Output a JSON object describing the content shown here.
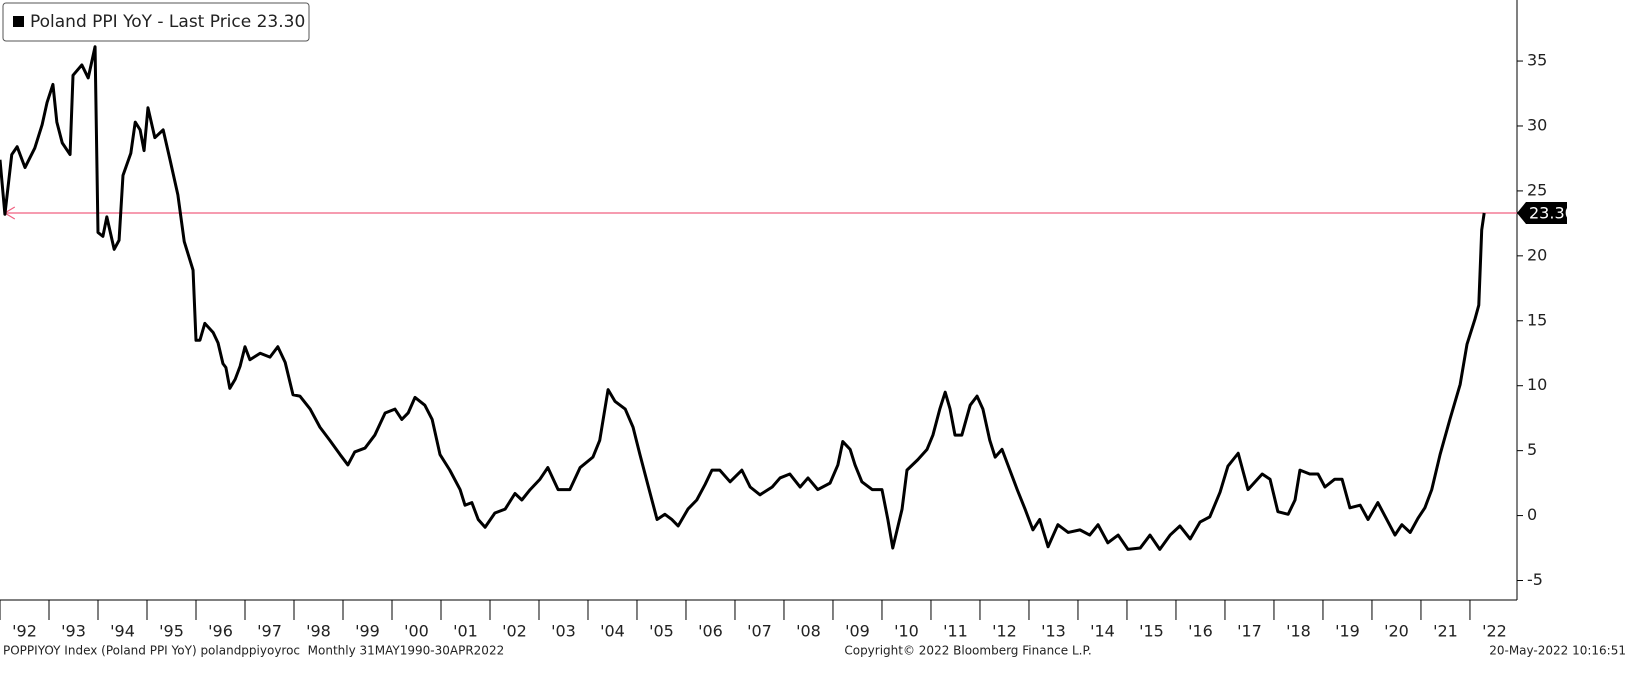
{
  "chart_data": {
    "type": "line",
    "series": [
      {
        "name": "Poland PPI YoY - Last Price 23.30",
        "color": "#000000",
        "x": [
          1992.0,
          1992.1,
          1992.24,
          1992.35,
          1992.51,
          1992.71,
          1992.86,
          1992.96,
          1993.08,
          1993.16,
          1993.27,
          1993.43,
          1993.49,
          1993.67,
          1993.8,
          1993.94,
          1994.0,
          1994.1,
          1994.18,
          1994.33,
          1994.43,
          1994.51,
          1994.67,
          1994.76,
          1994.86,
          1994.94,
          1995.02,
          1995.16,
          1995.33,
          1995.47,
          1995.63,
          1995.76,
          1995.94,
          1996.0,
          1996.08,
          1996.18,
          1996.35,
          1996.45,
          1996.55,
          1996.61,
          1996.69,
          1996.8,
          1996.9,
          1997.0,
          1997.1,
          1997.31,
          1997.51,
          1997.67,
          1997.82,
          1997.98,
          1998.12,
          1998.33,
          1998.53,
          1998.73,
          1998.94,
          1999.1,
          1999.24,
          1999.45,
          1999.65,
          1999.86,
          2000.06,
          2000.2,
          2000.33,
          2000.47,
          2000.67,
          2000.82,
          2000.98,
          2001.18,
          2001.39,
          2001.49,
          2001.63,
          2001.76,
          2001.9,
          2002.1,
          2002.31,
          2002.51,
          2002.65,
          2002.82,
          2003.02,
          2003.18,
          2003.39,
          2003.63,
          2003.84,
          2004.1,
          2004.24,
          2004.41,
          2004.55,
          2004.76,
          2004.92,
          2005.06,
          2005.22,
          2005.41,
          2005.57,
          2005.71,
          2005.84,
          2006.04,
          2006.22,
          2006.39,
          2006.53,
          2006.69,
          2006.9,
          2007.14,
          2007.31,
          2007.51,
          2007.76,
          2007.92,
          2008.12,
          2008.33,
          2008.49,
          2008.69,
          2008.94,
          2009.1,
          2009.2,
          2009.35,
          2009.45,
          2009.59,
          2009.8,
          2010.0,
          2010.12,
          2010.22,
          2010.41,
          2010.51,
          2010.73,
          2010.92,
          2011.04,
          2011.18,
          2011.29,
          2011.39,
          2011.49,
          2011.63,
          2011.8,
          2011.94,
          2012.06,
          2012.2,
          2012.31,
          2012.45,
          2012.61,
          2012.76,
          2012.92,
          2013.08,
          2013.22,
          2013.39,
          2013.59,
          2013.8,
          2014.04,
          2014.24,
          2014.41,
          2014.61,
          2014.82,
          2015.02,
          2015.27,
          2015.47,
          2015.67,
          2015.88,
          2016.08,
          2016.29,
          2016.49,
          2016.69,
          2016.9,
          2017.06,
          2017.27,
          2017.47,
          2017.76,
          2017.92,
          2018.08,
          2018.29,
          2018.43,
          2018.53,
          2018.73,
          2018.9,
          2019.04,
          2019.24,
          2019.39,
          2019.55,
          2019.76,
          2019.92,
          2020.12,
          2020.33,
          2020.47,
          2020.61,
          2020.78,
          2020.94,
          2021.08,
          2021.22,
          2021.39,
          2021.59,
          2021.8,
          2021.94,
          2022.1,
          2022.18,
          2022.24,
          2022.29
        ],
        "values": [
          27.4,
          23.2,
          27.8,
          28.4,
          26.8,
          28.3,
          30.1,
          31.8,
          33.2,
          30.3,
          28.7,
          27.8,
          33.9,
          34.7,
          33.7,
          36.1,
          21.8,
          21.5,
          23.0,
          20.5,
          21.2,
          26.2,
          27.9,
          30.3,
          29.7,
          28.1,
          31.4,
          29.1,
          29.7,
          27.4,
          24.7,
          21.1,
          18.9,
          13.5,
          13.5,
          14.8,
          14.1,
          13.3,
          11.7,
          11.4,
          9.8,
          10.5,
          11.5,
          13.0,
          12.0,
          12.5,
          12.2,
          13.0,
          11.8,
          9.3,
          9.2,
          8.2,
          6.8,
          5.8,
          4.7,
          3.9,
          4.9,
          5.2,
          6.2,
          7.9,
          8.2,
          7.4,
          7.9,
          9.1,
          8.5,
          7.4,
          4.7,
          3.5,
          2.0,
          0.8,
          1.0,
          -0.3,
          -0.9,
          0.2,
          0.5,
          1.7,
          1.2,
          2.0,
          2.8,
          3.7,
          2.0,
          2.0,
          3.7,
          4.5,
          5.8,
          9.7,
          8.8,
          8.2,
          6.8,
          4.7,
          2.4,
          -0.3,
          0.1,
          -0.3,
          -0.8,
          0.5,
          1.2,
          2.4,
          3.5,
          3.5,
          2.6,
          3.5,
          2.2,
          1.6,
          2.2,
          2.9,
          3.2,
          2.2,
          2.9,
          2.0,
          2.5,
          3.9,
          5.7,
          5.1,
          3.9,
          2.6,
          2.0,
          2.0,
          -0.3,
          -2.5,
          0.5,
          3.5,
          4.3,
          5.1,
          6.2,
          8.2,
          9.5,
          8.2,
          6.2,
          6.2,
          8.5,
          9.2,
          8.2,
          5.8,
          4.5,
          5.1,
          3.5,
          2.0,
          0.5,
          -1.1,
          -0.3,
          -2.4,
          -0.7,
          -1.3,
          -1.1,
          -1.5,
          -0.7,
          -2.1,
          -1.5,
          -2.6,
          -2.5,
          -1.5,
          -2.6,
          -1.5,
          -0.8,
          -1.8,
          -0.5,
          -0.1,
          1.8,
          3.8,
          4.8,
          2.0,
          3.2,
          2.8,
          0.3,
          0.1,
          1.2,
          3.5,
          3.2,
          3.2,
          2.2,
          2.8,
          2.8,
          0.6,
          0.8,
          -0.3,
          1.0,
          -0.5,
          -1.5,
          -0.7,
          -1.3,
          -0.2,
          0.6,
          2.0,
          4.7,
          7.4,
          10.1,
          13.2,
          15.1,
          16.2,
          22.0,
          23.3
        ]
      }
    ],
    "last_price": {
      "value": 23.3,
      "label": "23.30"
    },
    "xlim": [
      1992,
      2022.96
    ],
    "xticks": [
      {
        "value": 1992,
        "label": "'92"
      },
      {
        "value": 1993,
        "label": "'93"
      },
      {
        "value": 1994,
        "label": "'94"
      },
      {
        "value": 1995,
        "label": "'95"
      },
      {
        "value": 1996,
        "label": "'96"
      },
      {
        "value": 1997,
        "label": "'97"
      },
      {
        "value": 1998,
        "label": "'98"
      },
      {
        "value": 1999,
        "label": "'99"
      },
      {
        "value": 2000,
        "label": "'00"
      },
      {
        "value": 2001,
        "label": "'01"
      },
      {
        "value": 2002,
        "label": "'02"
      },
      {
        "value": 2003,
        "label": "'03"
      },
      {
        "value": 2004,
        "label": "'04"
      },
      {
        "value": 2005,
        "label": "'05"
      },
      {
        "value": 2006,
        "label": "'06"
      },
      {
        "value": 2007,
        "label": "'07"
      },
      {
        "value": 2008,
        "label": "'08"
      },
      {
        "value": 2009,
        "label": "'09"
      },
      {
        "value": 2010,
        "label": "'10"
      },
      {
        "value": 2011,
        "label": "'11"
      },
      {
        "value": 2012,
        "label": "'12"
      },
      {
        "value": 2013,
        "label": "'13"
      },
      {
        "value": 2014,
        "label": "'14"
      },
      {
        "value": 2015,
        "label": "'15"
      },
      {
        "value": 2016,
        "label": "'16"
      },
      {
        "value": 2017,
        "label": "'17"
      },
      {
        "value": 2018,
        "label": "'18"
      },
      {
        "value": 2019,
        "label": "'19"
      },
      {
        "value": 2020,
        "label": "'20"
      },
      {
        "value": 2021,
        "label": "'21"
      },
      {
        "value": 2022,
        "label": "'22"
      }
    ],
    "ylim": [
      -6.5,
      39.7
    ],
    "yticks": [
      -5,
      0,
      5,
      10,
      15,
      20,
      25,
      30,
      35
    ],
    "footer_left": "POPPIYOY Index (Poland PPI YoY) polandppiyoyroc  Monthly 31MAY1990-30APR2022",
    "footer_center": "Copyright© 2022 Bloomberg Finance L.P.",
    "footer_right": "20-May-2022 10:16:51"
  }
}
